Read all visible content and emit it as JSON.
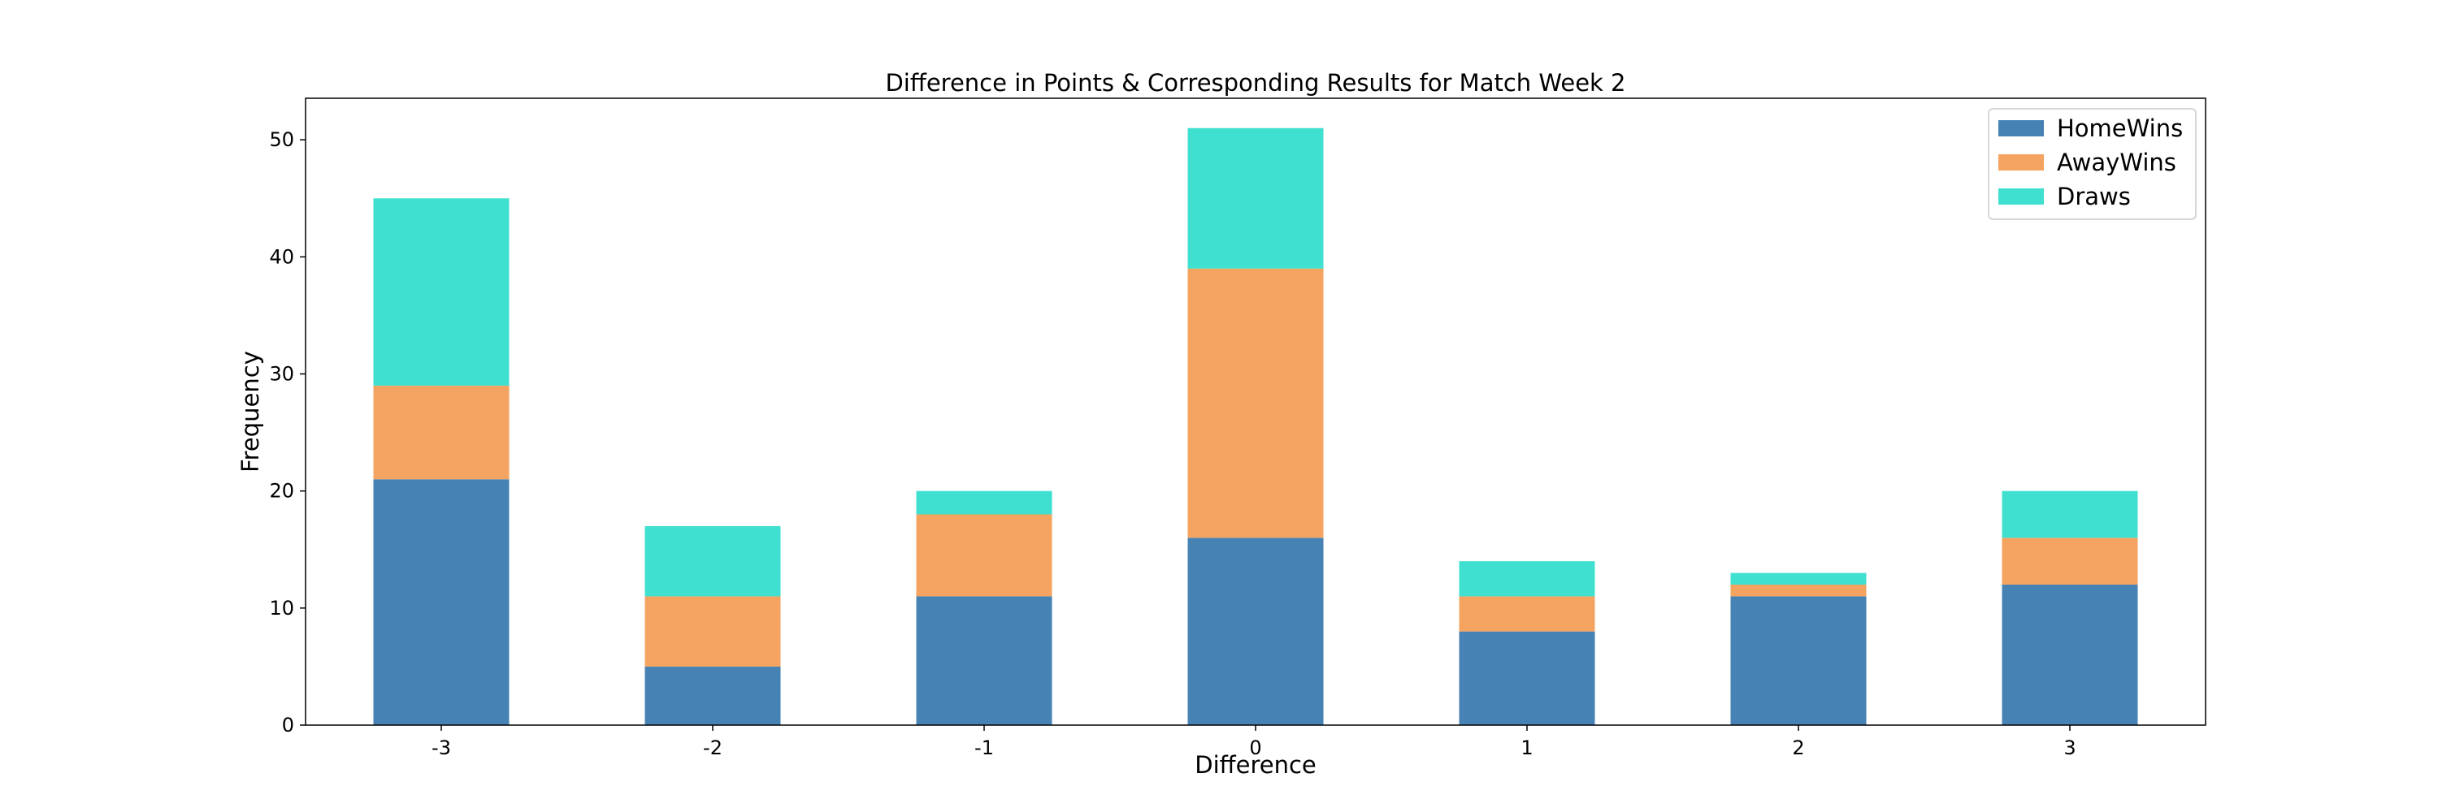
{
  "chart_data": {
    "type": "bar",
    "stacked": true,
    "title": "Difference in Points & Corresponding Results for Match Week 2",
    "xlabel": "Difference",
    "ylabel": "Frequency",
    "categories": [
      "-3",
      "-2",
      "-1",
      "0",
      "1",
      "2",
      "3"
    ],
    "series": [
      {
        "name": "HomeWins",
        "color": "#4682b4",
        "values": [
          21,
          5,
          11,
          16,
          8,
          11,
          12
        ]
      },
      {
        "name": "AwayWins",
        "color": "#f4a460",
        "values": [
          8,
          6,
          7,
          23,
          3,
          1,
          4
        ]
      },
      {
        "name": "Draws",
        "color": "#40e0d0",
        "values": [
          16,
          6,
          2,
          12,
          3,
          1,
          4
        ]
      }
    ],
    "ylim": [
      0,
      53.55
    ],
    "yticks": [
      0,
      10,
      20,
      30,
      40,
      50
    ],
    "grid": false,
    "legend_position": "top-right"
  }
}
